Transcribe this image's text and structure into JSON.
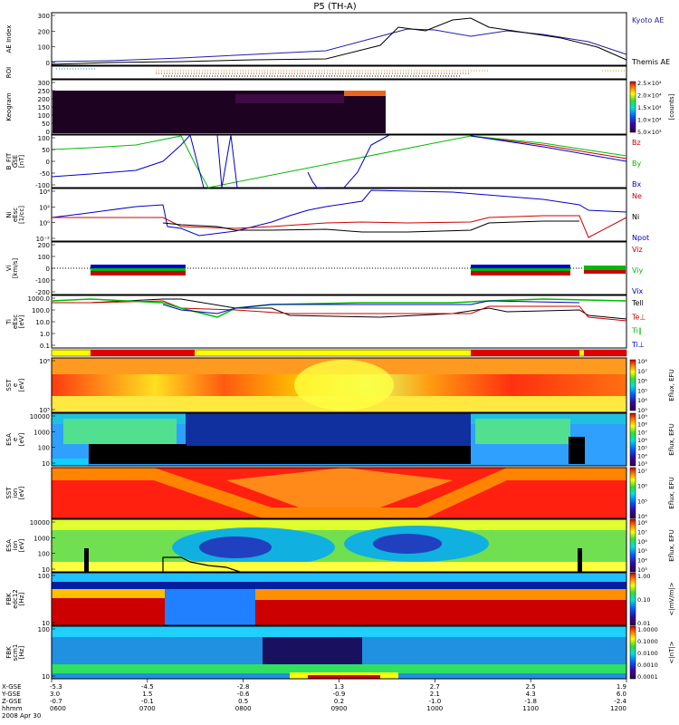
{
  "title": "P5 (TH-A)",
  "colors": {
    "kyoto": "#1f1fa8",
    "themis": "#000000",
    "bz": "#cc0000",
    "by": "#00bb00",
    "bx": "#0000cc",
    "roi": "#e08a00"
  },
  "panels": [
    {
      "id": "ae",
      "ylabel": [
        "AE Index"
      ],
      "ticks": [
        "300",
        "200",
        "100",
        "0"
      ],
      "legend": [
        {
          "text": "Kyoto AE",
          "color": "#1f1fa8"
        },
        {
          "text": "Themis AE",
          "color": "#000000"
        }
      ]
    },
    {
      "id": "roi",
      "ylabel": [
        "ROI"
      ],
      "ticks": [],
      "legend": []
    },
    {
      "id": "keogram",
      "ylabel": [
        "Keogram"
      ],
      "ticks": [
        "300",
        "250",
        "200",
        "150",
        "100",
        "50",
        "0"
      ],
      "legend": []
    },
    {
      "id": "bfit",
      "ylabel": [
        "B_FIT",
        "GSE",
        "[nT]"
      ],
      "ticks": [
        "100",
        "50",
        "0",
        "-50",
        "-100"
      ],
      "legend": [
        {
          "text": "Bz",
          "color": "#cc0000"
        },
        {
          "text": "By",
          "color": "#00bb00"
        },
        {
          "text": "Bx",
          "color": "#0000cc"
        }
      ]
    },
    {
      "id": "ni",
      "ylabel": [
        "Ni",
        "eEsc",
        "[1/cc]"
      ],
      "ticks": [
        "10⁴",
        "10²",
        "10⁰",
        "10⁻²"
      ],
      "legend": [
        {
          "text": "Ne",
          "color": "#cc0000"
        },
        {
          "text": "Ni",
          "color": "#000000"
        },
        {
          "text": "Npot",
          "color": "#0000cc"
        }
      ]
    },
    {
      "id": "vi",
      "ylabel": [
        "Vi",
        "[km/s]"
      ],
      "ticks": [
        "200",
        "100",
        "0",
        "-100",
        "-200"
      ],
      "legend": [
        {
          "text": "Viz",
          "color": "#cc0000"
        },
        {
          "text": "Viy",
          "color": "#00bb00"
        },
        {
          "text": "Vix",
          "color": "#0000cc"
        }
      ]
    },
    {
      "id": "ti",
      "ylabel": [
        "Ti",
        "eEsc",
        "[eV]"
      ],
      "ticks": [
        "1000.0",
        "100.0",
        "10.0",
        "1.0",
        "0.1"
      ],
      "legend": [
        {
          "text": "Tell",
          "color": "#000000"
        },
        {
          "text": "Te⊥",
          "color": "#cc0000"
        },
        {
          "text": "Ti∥",
          "color": "#00bb00"
        },
        {
          "text": "Ti⊥",
          "color": "#0000cc"
        }
      ]
    },
    {
      "id": "mode",
      "ylabel": [],
      "ticks": [],
      "legend": []
    },
    {
      "id": "sst_e",
      "ylabel": [
        "SST",
        "e",
        "[eV]"
      ],
      "ticks": [
        "10⁶",
        "10⁵"
      ],
      "legend": []
    },
    {
      "id": "esa_e",
      "ylabel": [
        "ESA",
        "e",
        "[eV]"
      ],
      "ticks": [
        "10000",
        "1000",
        "100",
        "10"
      ],
      "legend": []
    },
    {
      "id": "sst_i",
      "ylabel": [
        "SST",
        "ion",
        "[eV]"
      ],
      "ticks": [],
      "legend": []
    },
    {
      "id": "esa_i",
      "ylabel": [
        "ESA",
        "ion",
        "[eV]"
      ],
      "ticks": [
        "10000",
        "1000",
        "100",
        "10"
      ],
      "legend": []
    },
    {
      "id": "fbk_e12",
      "ylabel": [
        "FBK",
        "edc12",
        "[Hz]"
      ],
      "ticks": [
        "100",
        "10"
      ],
      "legend": []
    },
    {
      "id": "fbk_scm1",
      "ylabel": [
        "FBK",
        "scm1",
        "[Hz]"
      ],
      "ticks": [
        "100",
        "10"
      ],
      "legend": []
    }
  ],
  "colorbars": [
    {
      "panel": "keogram",
      "ticks": [
        "2.5×10⁴",
        "2.0×10⁴",
        "1.5×10⁴",
        "1.0×10⁴",
        "5.0×10³"
      ],
      "unit": "[counts]"
    },
    {
      "panel": "sst_e",
      "ticks": [
        "10⁸",
        "10⁷",
        "10⁶",
        "10⁵",
        "10⁴",
        "10³"
      ],
      "unit": "Eflux, EFU"
    },
    {
      "panel": "esa_e",
      "ticks": [
        "10⁹",
        "10⁸",
        "10⁷",
        "10⁶",
        "10⁵",
        "10⁴",
        "10³"
      ],
      "unit": "Eflux, EFU"
    },
    {
      "panel": "sst_i",
      "ticks": [
        "10⁷",
        "10⁶",
        "10⁵",
        "10⁴"
      ],
      "unit": "Eflux, EFU"
    },
    {
      "panel": "esa_i",
      "ticks": [
        "10⁸",
        "10⁷",
        "10⁶",
        "10⁵",
        "10⁴",
        "10³"
      ],
      "unit": "Eflux, EFU"
    },
    {
      "panel": "fbk_e12",
      "ticks": [
        "1.00",
        "0.10",
        "0.01"
      ],
      "unit": "<|mV/m|>"
    },
    {
      "panel": "fbk_scm1",
      "ticks": [
        "1.0000",
        "0.1000",
        "0.0100",
        "0.0010",
        "0.0001"
      ],
      "unit": "<|nT|>"
    }
  ],
  "xaxis": {
    "row_labels": [
      "X-GSE",
      "Y-GSE",
      "Z-GSE",
      "hhmm",
      "2008 Apr 30"
    ],
    "columns": [
      {
        "x": "-5.3",
        "y": "3.0",
        "z": "-0.7",
        "t": "0600"
      },
      {
        "x": "-4.5",
        "y": "1.5",
        "z": "-0.1",
        "t": "0700"
      },
      {
        "x": "-2.8",
        "y": "-0.6",
        "z": "0.5",
        "t": "0800"
      },
      {
        "x": "1.3",
        "y": "-0.9",
        "z": "0.2",
        "t": "0900"
      },
      {
        "x": "2.7",
        "y": "2.1",
        "z": "-1.0",
        "t": "1000"
      },
      {
        "x": "2.5",
        "y": "4.3",
        "z": "-1.8",
        "t": "1100"
      },
      {
        "x": "1.9",
        "y": "6.0",
        "z": "-2.4",
        "t": "1200"
      }
    ]
  },
  "chart_data": {
    "type": "line",
    "title": "P5 (TH-A)",
    "x": [
      "0600",
      "0700",
      "0800",
      "0900",
      "1000",
      "1100",
      "1200"
    ],
    "series": [
      {
        "name": "Kyoto AE",
        "values": [
          20,
          40,
          60,
          90,
          240,
          230,
          80
        ]
      },
      {
        "name": "Themis AE",
        "values": [
          10,
          30,
          35,
          60,
          270,
          240,
          50
        ]
      }
    ],
    "xlabel": "hhmm",
    "ylabel": "AE Index",
    "ylim": [
      0,
      300
    ]
  }
}
